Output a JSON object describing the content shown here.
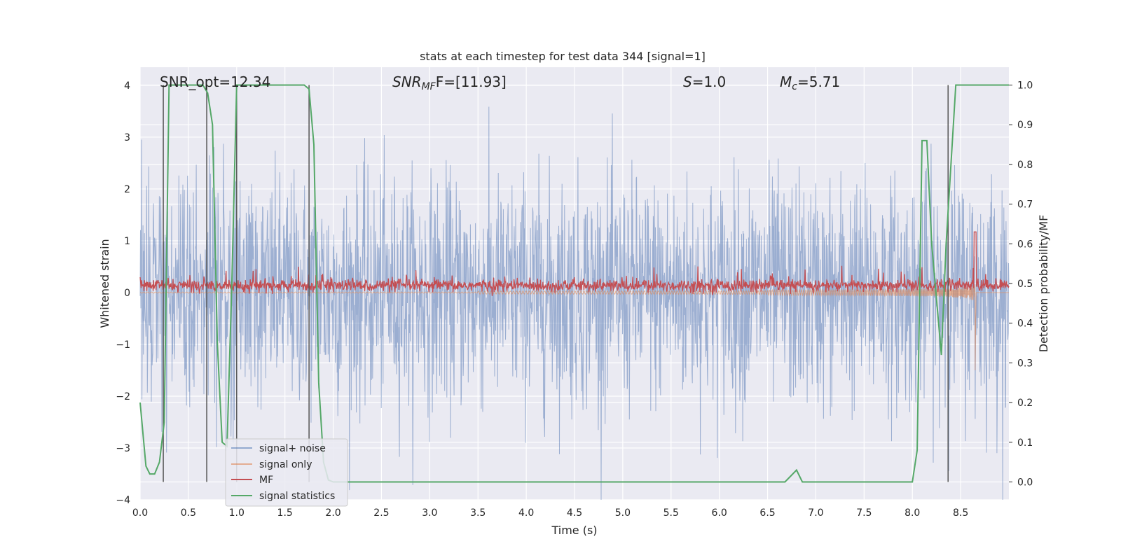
{
  "chart_data": {
    "type": "line",
    "title": "stats at each timestep for test data 344 [signal=1]",
    "xlabel": "Time (s)",
    "ylabel": "Whitened strain",
    "y2label": "Detection probability/MF",
    "xlim": [
      0,
      9.0
    ],
    "ylim": [
      -4.0,
      4.35
    ],
    "y2lim": [
      -0.045,
      1.045
    ],
    "x_ticks": [
      "0.0",
      "0.5",
      "1.0",
      "1.5",
      "2.0",
      "2.5",
      "3.0",
      "3.5",
      "4.0",
      "4.5",
      "5.0",
      "5.5",
      "6.0",
      "6.5",
      "7.0",
      "7.5",
      "8.0",
      "8.5"
    ],
    "y_ticks": [
      "4",
      "3",
      "2",
      "1",
      "0",
      "−1",
      "−2",
      "−3",
      "−4"
    ],
    "y2_ticks": [
      "1.0",
      "0.9",
      "0.8",
      "0.7",
      "0.6",
      "0.5",
      "0.4",
      "0.3",
      "0.2",
      "0.1",
      "0.0"
    ],
    "grid": true,
    "legend_placement": "lower-left",
    "annotations": {
      "snr_opt": "SNR_opt=12.34",
      "snr_mf_prefix": "SNR",
      "snr_mf_sub": "MF",
      "snr_mf_value": "F=[11.93]",
      "s_symbol": "S",
      "s_value": "=1.0",
      "mc_symbol": "M",
      "mc_sub": "c",
      "mc_value": "=5.71"
    },
    "colors": {
      "noise": "#4c72b0",
      "signal": "#dd8452",
      "mf": "#c44e52",
      "stats": "#55a868",
      "background": "#eaeaf2",
      "vlines": "#555555"
    },
    "series": [
      {
        "name": "signal+ noise",
        "envelope_abs": 2.3,
        "peak_abs": 4.0
      },
      {
        "name": "signal only",
        "chirp_end_time": 8.65,
        "peak_abs": 1.4
      },
      {
        "name": "MF",
        "axis": "right",
        "baseline": 0.495,
        "peak_time": 8.65,
        "peak_value": 0.63
      },
      {
        "name": "signal statistics",
        "axis": "right",
        "x": [
          0.0,
          0.06,
          0.1,
          0.15,
          0.2,
          0.25,
          0.3,
          0.35,
          0.4,
          0.45,
          0.5,
          0.55,
          0.6,
          0.65,
          0.7,
          0.75,
          0.8,
          0.85,
          0.9,
          0.95,
          1.0,
          1.05,
          1.1,
          1.2,
          1.5,
          1.6,
          1.7,
          1.75,
          1.8,
          1.85,
          1.9,
          1.95,
          2.0,
          2.2,
          3.0,
          4.0,
          5.0,
          6.0,
          6.5,
          6.68,
          6.8,
          6.86,
          7.0,
          7.5,
          8.0,
          8.05,
          8.1,
          8.15,
          8.2,
          8.3,
          8.35,
          8.45,
          8.55,
          8.7,
          9.0
        ],
        "y": [
          0.2,
          0.04,
          0.02,
          0.02,
          0.05,
          0.15,
          1.0,
          1.0,
          1.0,
          1.0,
          1.0,
          1.0,
          1.0,
          1.0,
          0.98,
          0.9,
          0.35,
          0.1,
          0.09,
          0.5,
          1.0,
          1.0,
          1.0,
          1.0,
          1.0,
          1.0,
          1.0,
          0.99,
          0.85,
          0.25,
          0.05,
          0.005,
          0.0,
          0.0,
          0.0,
          0.0,
          0.0,
          0.0,
          0.0,
          0.0,
          0.03,
          0.0,
          0.0,
          0.0,
          0.0,
          0.08,
          0.86,
          0.86,
          0.6,
          0.32,
          0.6,
          1.0,
          1.0,
          1.0,
          1.0
        ]
      }
    ],
    "vertical_lines_x": [
      0.24,
      0.69,
      1.0,
      1.75,
      8.37
    ]
  }
}
